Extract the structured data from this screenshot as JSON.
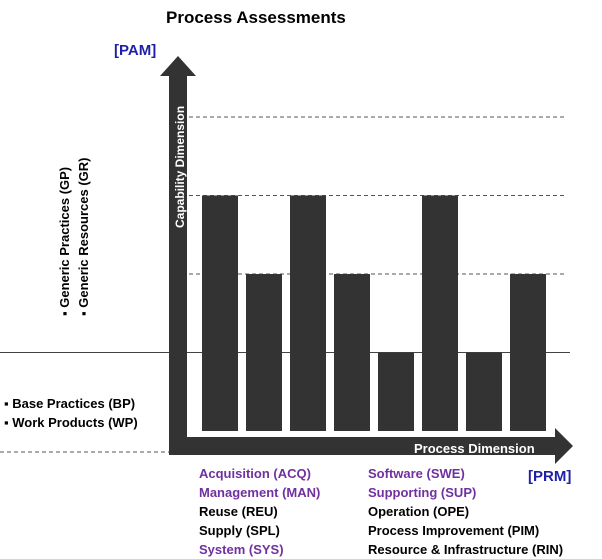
{
  "title": "Process Assessments",
  "pam_label": "[PAM]",
  "prm_label": "[PRM]",
  "y_axis_label": "Capability Dimension",
  "x_axis_label": "Process Dimension",
  "generic_items": [
    "Generic Practices (GP)",
    "Generic Resources (GR)"
  ],
  "base_items": [
    "Base Practices (BP)",
    "Work Products (WP)"
  ],
  "bullet": "▪",
  "process_groups_col1": [
    {
      "label": "Acquisition (ACQ)",
      "color": "#7030a0"
    },
    {
      "label": "Management (MAN)",
      "color": "#7030a0"
    },
    {
      "label": "Reuse (REU)",
      "color": "#000000"
    },
    {
      "label": "Supply (SPL)",
      "color": "#000000"
    },
    {
      "label": "System (SYS)",
      "color": "#7030a0"
    }
  ],
  "process_groups_col2": [
    {
      "label": "Software (SWE)",
      "color": "#7030a0"
    },
    {
      "label": "Supporting (SUP)",
      "color": "#7030a0"
    },
    {
      "label": "Operation (OPE)",
      "color": "#000000"
    },
    {
      "label": "Process Improvement (PIM)",
      "color": "#000000"
    },
    {
      "label": "Resource & Infrastructure (RIN)",
      "color": "#000000"
    }
  ],
  "chart_data": {
    "type": "bar",
    "title": "Process Assessments",
    "xlabel": "Process Dimension",
    "ylabel": "Capability Dimension",
    "values": [
      3,
      2,
      3,
      2,
      1,
      3,
      1,
      2
    ],
    "ylim": [
      0,
      4
    ],
    "colors": {
      "bar": "#333333",
      "axis": "#333333"
    }
  }
}
